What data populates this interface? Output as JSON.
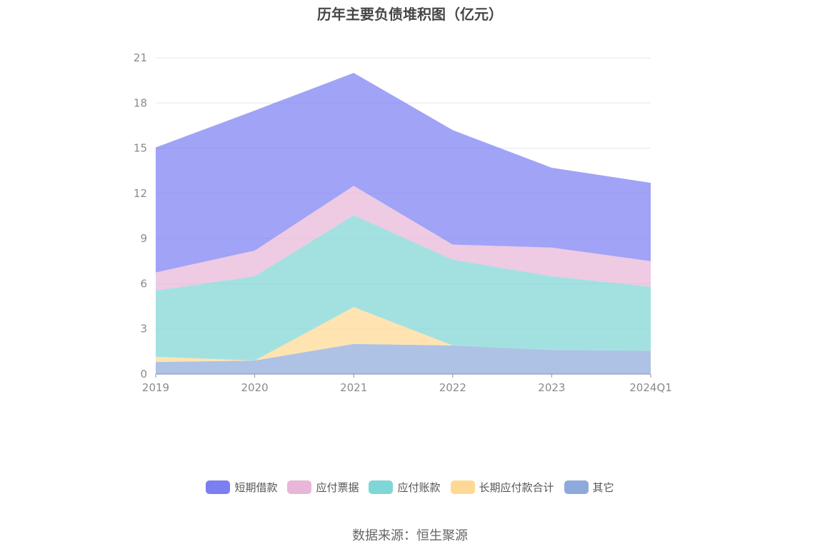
{
  "chart_data": {
    "type": "area",
    "stacked": true,
    "title": "历年主要负债堆积图（亿元）",
    "categories": [
      "2019",
      "2020",
      "2021",
      "2022",
      "2023",
      "2024Q1"
    ],
    "ylim": [
      0,
      21
    ],
    "yticks": [
      0,
      3,
      6,
      9,
      12,
      15,
      18,
      21
    ],
    "grid": true,
    "legend_position": "bottom",
    "series": [
      {
        "name": "其它",
        "color": "#8eaadb",
        "values": [
          0.8,
          0.9,
          2.0,
          1.9,
          1.6,
          1.55
        ]
      },
      {
        "name": "长期应付款合计",
        "color": "#ffd993",
        "values": [
          0.35,
          0.0,
          2.45,
          0.0,
          0.0,
          0.0
        ]
      },
      {
        "name": "应付账款",
        "color": "#7fd6d6",
        "values": [
          4.4,
          5.6,
          6.1,
          5.7,
          4.9,
          4.25
        ]
      },
      {
        "name": "应付票据",
        "color": "#e8b6d8",
        "values": [
          1.2,
          1.7,
          1.95,
          1.0,
          1.9,
          1.7
        ]
      },
      {
        "name": "短期借款",
        "color": "#7b7ff2",
        "values": [
          8.3,
          9.3,
          7.5,
          7.6,
          5.3,
          5.2
        ]
      }
    ]
  },
  "legend_order": [
    "短期借款",
    "应付票据",
    "应付账款",
    "长期应付款合计",
    "其它"
  ],
  "source": "数据来源：恒生聚源"
}
